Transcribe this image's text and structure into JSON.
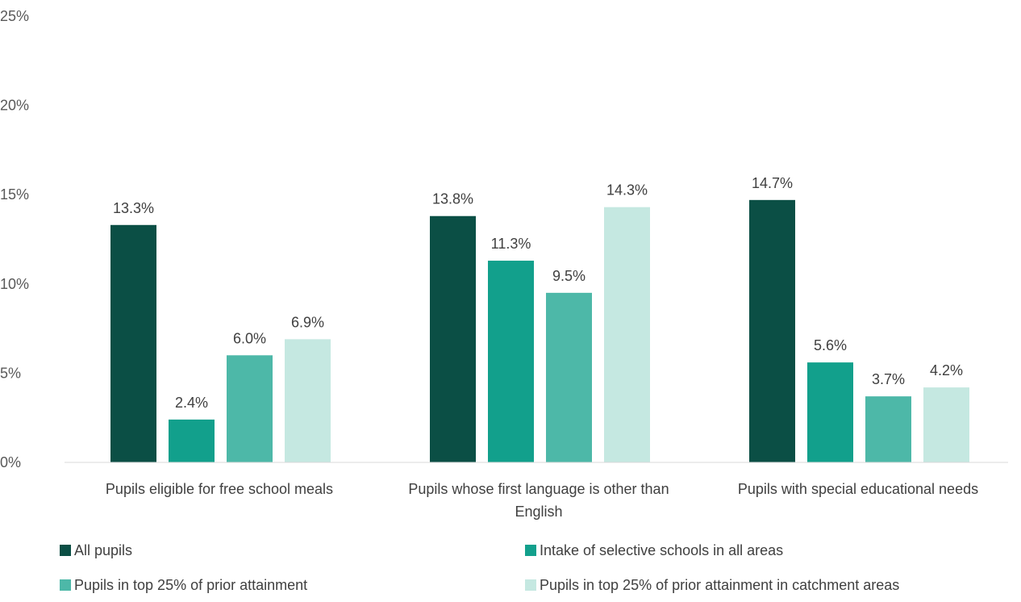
{
  "chart_data": {
    "type": "bar",
    "categories": [
      [
        "Pupils eligible for free school meals"
      ],
      [
        "Pupils whose first language is other than",
        "English"
      ],
      [
        "Pupils with special educational needs"
      ]
    ],
    "series": [
      {
        "name": "All pupils",
        "color": "#0b4f45",
        "values": [
          13.3,
          13.8,
          14.7
        ],
        "labels": [
          "13.3%",
          "13.8%",
          "14.7%"
        ]
      },
      {
        "name": "Intake of selective schools in all areas",
        "color": "#12a08c",
        "values": [
          2.4,
          11.3,
          5.6
        ],
        "labels": [
          "2.4%",
          "11.3%",
          "5.6%"
        ]
      },
      {
        "name": "Pupils in top 25% of prior attainment",
        "color": "#4db8a8",
        "values": [
          6.0,
          9.5,
          3.7
        ],
        "labels": [
          "6.0%",
          "9.5%",
          "3.7%"
        ]
      },
      {
        "name": "Pupils in top 25% of prior attainment in catchment areas",
        "color": "#c5e8e1",
        "values": [
          6.9,
          14.3,
          4.2
        ],
        "labels": [
          "6.9%",
          "14.3%",
          "4.2%"
        ]
      }
    ],
    "y_ticks": [
      "0%",
      "5%",
      "10%",
      "15%",
      "20%",
      "25%"
    ],
    "ylim": [
      0,
      25
    ],
    "grid": false,
    "legend_position": "bottom"
  }
}
